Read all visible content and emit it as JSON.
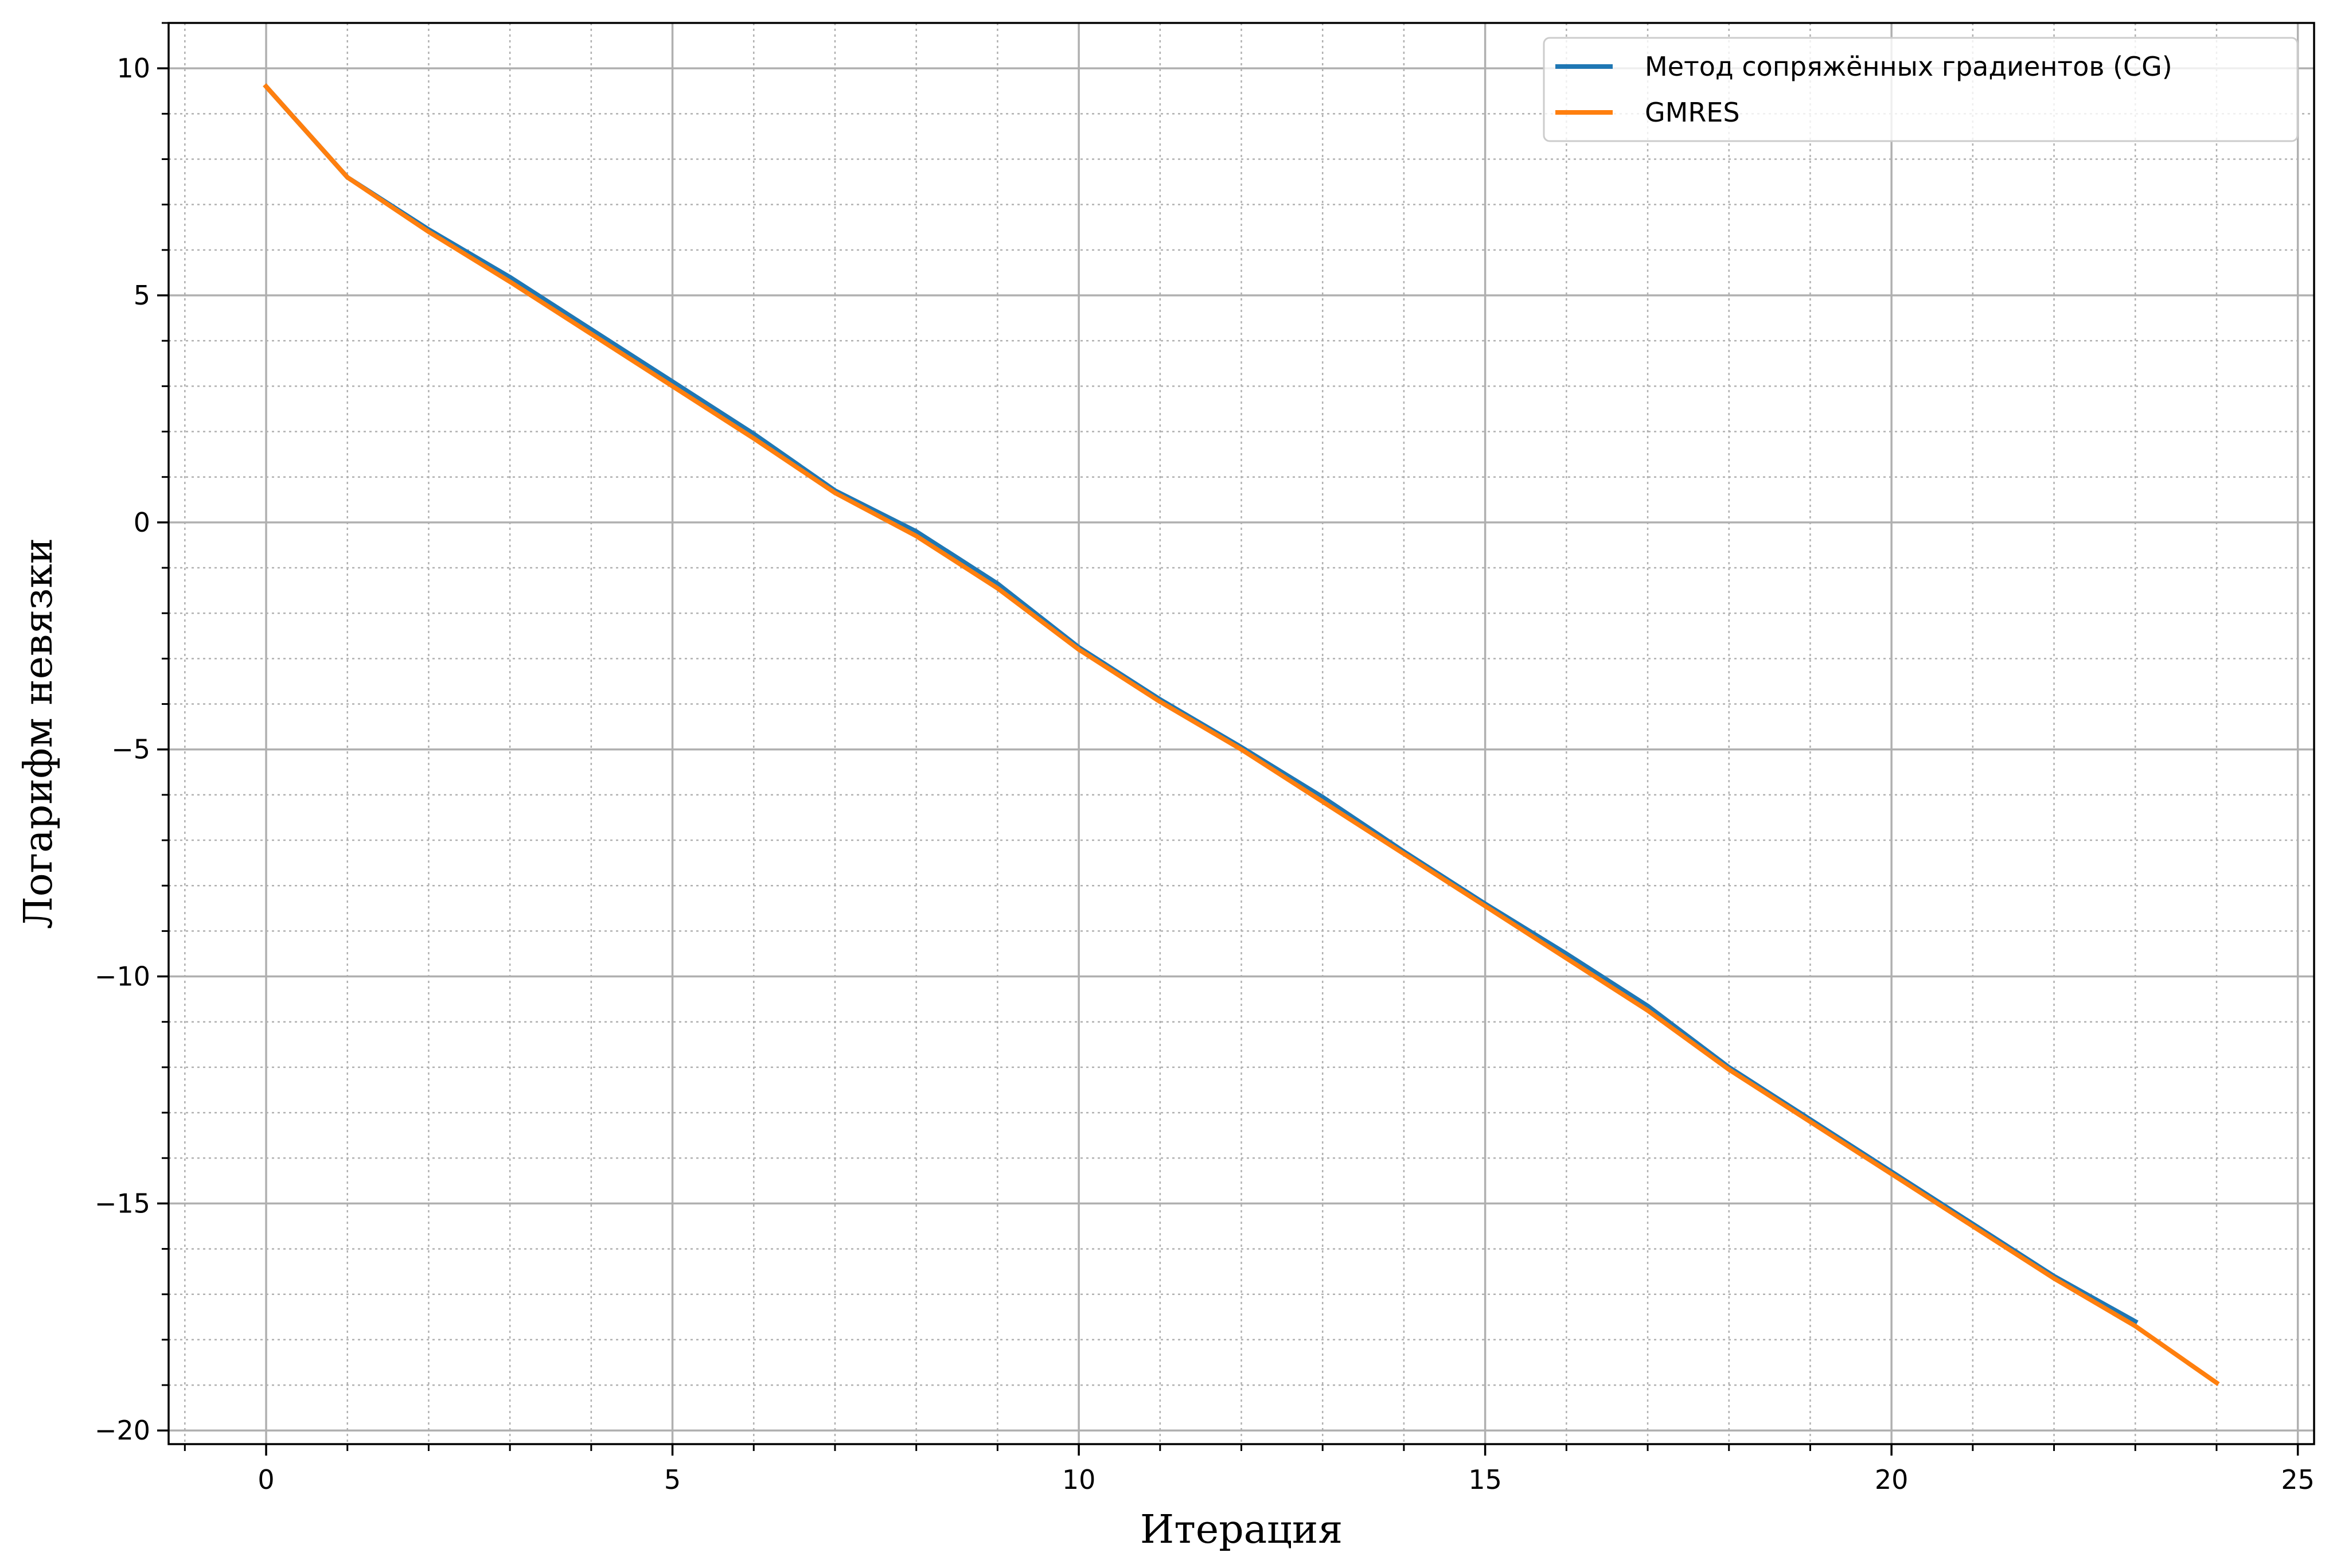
{
  "chart_data": {
    "type": "line",
    "title": "",
    "xlabel": "Итерация",
    "ylabel": "Логарифм невязки",
    "xlim": [
      -1.2,
      25.2
    ],
    "ylim": [
      -20.3,
      11.0
    ],
    "xticks": [
      0,
      5,
      10,
      15,
      20,
      25
    ],
    "yticks": [
      10,
      5,
      0,
      -5,
      -10,
      -15,
      -20
    ],
    "xtick_labels": [
      "0",
      "5",
      "10",
      "15",
      "20",
      "25"
    ],
    "ytick_labels": [
      "10",
      "5",
      "0",
      "−5",
      "−10",
      "−15",
      "−20"
    ],
    "grid": true,
    "minor_grid": true,
    "legend_position": "top-right",
    "series": [
      {
        "name": "Метод сопряжённых градиентов (CG)",
        "color": "#1f77b4",
        "x": [
          0,
          1,
          2,
          3,
          4,
          5,
          6,
          7,
          8,
          9,
          10,
          11,
          12,
          13,
          14,
          15,
          16,
          17,
          18,
          19,
          20,
          21,
          22,
          23
        ],
        "y": [
          9.6,
          7.6,
          6.45,
          5.4,
          4.25,
          3.1,
          1.95,
          0.7,
          -0.2,
          -1.35,
          -2.75,
          -3.9,
          -4.95,
          -6.05,
          -7.25,
          -8.4,
          -9.5,
          -10.65,
          -12.0,
          -13.15,
          -14.3,
          -15.45,
          -16.6,
          -17.6
        ]
      },
      {
        "name": "GMRES",
        "color": "#ff7f0e",
        "x": [
          0,
          1,
          2,
          3,
          4,
          5,
          6,
          7,
          8,
          9,
          10,
          11,
          12,
          13,
          14,
          15,
          16,
          17,
          18,
          19,
          20,
          21,
          22,
          23,
          24
        ],
        "y": [
          9.6,
          7.6,
          6.4,
          5.3,
          4.15,
          3.0,
          1.85,
          0.65,
          -0.3,
          -1.45,
          -2.8,
          -3.95,
          -5.0,
          -6.15,
          -7.3,
          -8.45,
          -9.6,
          -10.75,
          -12.05,
          -13.2,
          -14.35,
          -15.5,
          -16.65,
          -17.7,
          -18.95
        ]
      }
    ]
  }
}
